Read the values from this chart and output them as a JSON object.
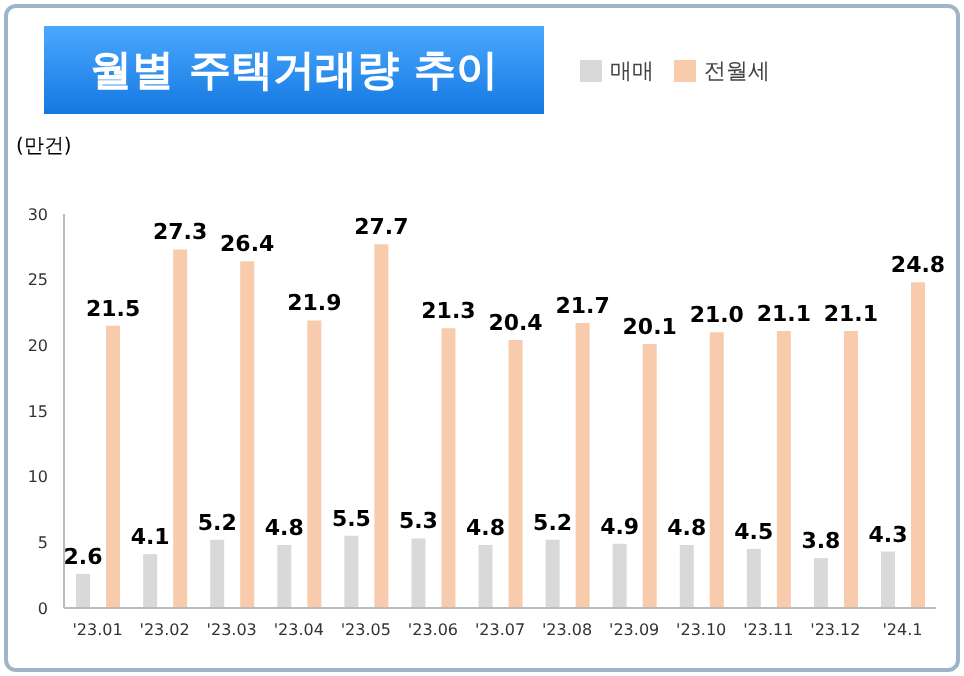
{
  "chart_data": {
    "type": "bar",
    "title": "월별 주택거래량 추이",
    "ylabel": "(만건)",
    "categories": [
      "'23.01",
      "'23.02",
      "'23.03",
      "'23.04",
      "'23.05",
      "'23.06",
      "'23.07",
      "'23.08",
      "'23.09",
      "'23.10",
      "'23.11",
      "'23.12",
      "'24.1"
    ],
    "series": [
      {
        "name": "매매",
        "color": "#d9d9d9",
        "values": [
          2.6,
          4.1,
          5.2,
          4.8,
          5.5,
          5.3,
          4.8,
          5.2,
          4.9,
          4.8,
          4.5,
          3.8,
          4.3
        ],
        "value_labels": [
          "2.6",
          "4.1",
          "5.2",
          "4.8",
          "5.5",
          "5.3",
          "4.8",
          "5.2",
          "4.9",
          "4.8",
          "4.5",
          "3.8",
          "4.3"
        ]
      },
      {
        "name": "전월세",
        "color": "#f8cbad",
        "values": [
          21.5,
          27.3,
          26.4,
          21.9,
          27.7,
          21.3,
          20.4,
          21.7,
          20.1,
          21.0,
          21.1,
          21.1,
          24.8
        ],
        "value_labels": [
          "21.5",
          "27.3",
          "26.4",
          "21.9",
          "27.7",
          "21.3",
          "20.4",
          "21.7",
          "20.1",
          "21.0",
          "21.1",
          "21.1",
          "24.8"
        ]
      }
    ],
    "ylim": [
      0,
      30
    ],
    "yticks": [
      0,
      5,
      10,
      15,
      20,
      25,
      30
    ],
    "legend": "top right",
    "grid": false
  }
}
